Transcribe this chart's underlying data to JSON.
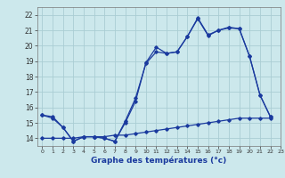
{
  "xlabel": "Graphe des températures (°c)",
  "background_color": "#cce8ec",
  "grid_color": "#aacdd4",
  "line_color": "#1a3a9e",
  "xlim": [
    -0.5,
    23
  ],
  "ylim": [
    13.5,
    22.5
  ],
  "yticks": [
    14,
    15,
    16,
    17,
    18,
    19,
    20,
    21,
    22
  ],
  "xticks": [
    0,
    1,
    2,
    3,
    4,
    5,
    6,
    7,
    8,
    9,
    10,
    11,
    12,
    13,
    14,
    15,
    16,
    17,
    18,
    19,
    20,
    21,
    22,
    23
  ],
  "series": [
    {
      "x": [
        0,
        1,
        2,
        3,
        4,
        5,
        6,
        7,
        8,
        9,
        10,
        11,
        12,
        13,
        14,
        15,
        16,
        17,
        18,
        19,
        20,
        21,
        22
      ],
      "y": [
        15.5,
        15.4,
        14.7,
        13.8,
        14.1,
        14.1,
        14.0,
        13.8,
        15.0,
        16.4,
        18.9,
        19.9,
        19.5,
        19.6,
        20.6,
        21.8,
        20.7,
        21.0,
        21.2,
        21.1,
        19.3,
        16.8,
        15.4
      ]
    },
    {
      "x": [
        0,
        1,
        2,
        3,
        4,
        5,
        6,
        7,
        8,
        9,
        10,
        11,
        12,
        13,
        14,
        15,
        16,
        17,
        18,
        19,
        20,
        21,
        22
      ],
      "y": [
        15.5,
        15.3,
        14.7,
        13.8,
        14.1,
        14.1,
        14.0,
        13.8,
        15.1,
        16.6,
        18.85,
        19.6,
        19.5,
        19.6,
        20.6,
        21.75,
        20.65,
        21.0,
        21.15,
        21.1,
        19.3,
        16.8,
        15.4
      ]
    },
    {
      "x": [
        0,
        1,
        2,
        3,
        4,
        5,
        6,
        7,
        8,
        9,
        10,
        11,
        12,
        13,
        14,
        15,
        16,
        17,
        18,
        19,
        20,
        21,
        22
      ],
      "y": [
        14.0,
        14.0,
        14.0,
        14.0,
        14.1,
        14.1,
        14.1,
        14.2,
        14.2,
        14.3,
        14.4,
        14.5,
        14.6,
        14.7,
        14.8,
        14.9,
        15.0,
        15.1,
        15.2,
        15.3,
        15.3,
        15.3,
        15.3
      ]
    }
  ]
}
